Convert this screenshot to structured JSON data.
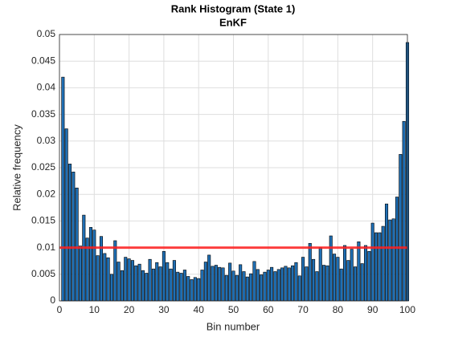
{
  "chart_data": {
    "type": "bar",
    "title": "Rank Histogram (State 1)",
    "subtitle": "EnKF",
    "xlabel": "Bin number",
    "ylabel": "Relative frequency",
    "x": [
      1,
      2,
      3,
      4,
      5,
      6,
      7,
      8,
      9,
      10,
      11,
      12,
      13,
      14,
      15,
      16,
      17,
      18,
      19,
      20,
      21,
      22,
      23,
      24,
      25,
      26,
      27,
      28,
      29,
      30,
      31,
      32,
      33,
      34,
      35,
      36,
      37,
      38,
      39,
      40,
      41,
      42,
      43,
      44,
      45,
      46,
      47,
      48,
      49,
      50,
      51,
      52,
      53,
      54,
      55,
      56,
      57,
      58,
      59,
      60,
      61,
      62,
      63,
      64,
      65,
      66,
      67,
      68,
      69,
      70,
      71,
      72,
      73,
      74,
      75,
      76,
      77,
      78,
      79,
      80,
      81,
      82,
      83,
      84,
      85,
      86,
      87,
      88,
      89,
      90,
      91,
      92,
      93,
      94,
      95,
      96,
      97,
      98,
      99,
      100
    ],
    "values": [
      0.042,
      0.0323,
      0.0257,
      0.0242,
      0.0212,
      0.0103,
      0.0161,
      0.0118,
      0.0138,
      0.0133,
      0.0085,
      0.0121,
      0.0089,
      0.0081,
      0.005,
      0.0113,
      0.0073,
      0.0057,
      0.0082,
      0.0079,
      0.0076,
      0.0066,
      0.0069,
      0.0057,
      0.0052,
      0.0078,
      0.006,
      0.0072,
      0.0064,
      0.0093,
      0.0072,
      0.006,
      0.0076,
      0.0054,
      0.0052,
      0.0058,
      0.0046,
      0.004,
      0.0044,
      0.0042,
      0.0058,
      0.0073,
      0.0086,
      0.0065,
      0.0067,
      0.0063,
      0.0062,
      0.0048,
      0.0071,
      0.0056,
      0.0048,
      0.0068,
      0.0055,
      0.0045,
      0.0051,
      0.0074,
      0.0059,
      0.0049,
      0.0054,
      0.0058,
      0.0063,
      0.0055,
      0.0059,
      0.0062,
      0.0065,
      0.0062,
      0.0066,
      0.0072,
      0.0047,
      0.0082,
      0.0064,
      0.0108,
      0.0078,
      0.0055,
      0.01,
      0.0067,
      0.0066,
      0.0122,
      0.0088,
      0.0082,
      0.006,
      0.0104,
      0.0076,
      0.0097,
      0.0064,
      0.0111,
      0.007,
      0.0104,
      0.0093,
      0.0146,
      0.0128,
      0.0128,
      0.014,
      0.0182,
      0.0152,
      0.0154,
      0.0195,
      0.0275,
      0.0337,
      0.0485
    ],
    "color": "#1f6fb4",
    "reference_line": 0.01,
    "reference_color": "#ff2020",
    "xlim": [
      0,
      100
    ],
    "xticks": [
      0,
      10,
      20,
      30,
      40,
      50,
      60,
      70,
      80,
      90,
      100
    ],
    "ylim": [
      0,
      0.05
    ],
    "yticks": [
      0,
      0.005,
      0.01,
      0.015,
      0.02,
      0.025,
      0.03,
      0.035,
      0.04,
      0.045,
      0.05
    ],
    "grid": true
  }
}
